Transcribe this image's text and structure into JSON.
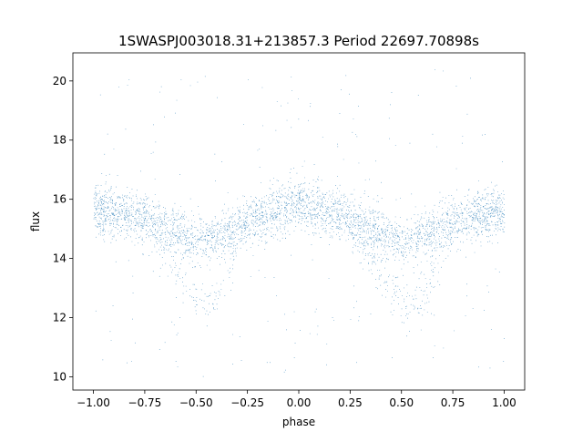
{
  "chart_data": {
    "type": "scatter",
    "title": "1SWASPJ003018.31+213857.3 Period 22697.70898s",
    "xlabel": "phase",
    "ylabel": "flux",
    "xlim": [
      -1.1,
      1.1
    ],
    "ylim": [
      9.55,
      20.95
    ],
    "xticks": [
      -1.0,
      -0.75,
      -0.5,
      -0.25,
      0.0,
      0.25,
      0.5,
      0.75,
      1.0
    ],
    "xtick_labels": [
      "−1.00",
      "−0.75",
      "−0.50",
      "−0.25",
      "0.00",
      "0.25",
      "0.50",
      "0.75",
      "1.00"
    ],
    "yticks": [
      10,
      12,
      14,
      16,
      18,
      20
    ],
    "ytick_labels": [
      "10",
      "12",
      "14",
      "16",
      "18",
      "20"
    ],
    "grid": false,
    "legend": "none",
    "marker_color": "#1f77b4",
    "series": [
      {
        "phase_profile": {
          "x": [
            -1.0,
            -0.75,
            -0.6,
            -0.5,
            -0.4,
            -0.25,
            0.0,
            0.25,
            0.4,
            0.5,
            0.6,
            0.75,
            1.0
          ],
          "y_primary": [
            15.7,
            15.4,
            14.9,
            14.6,
            14.7,
            15.3,
            15.8,
            15.4,
            14.9,
            14.5,
            14.8,
            15.3,
            15.6
          ],
          "y_dip_branch": [
            15.7,
            15.3,
            13.8,
            12.4,
            12.7,
            15.3,
            15.8,
            15.3,
            13.5,
            12.4,
            12.6,
            15.2,
            15.6
          ]
        },
        "x_range": [
          -1.0,
          1.0
        ],
        "outlier_y_range": [
          10.0,
          20.5
        ]
      }
    ]
  }
}
